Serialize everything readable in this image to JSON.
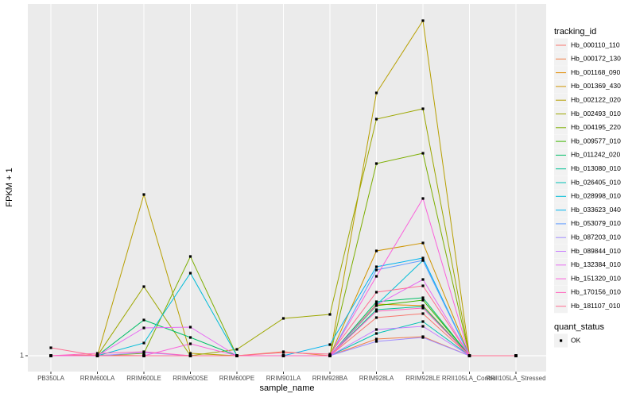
{
  "chart_data": {
    "type": "line",
    "xlabel": "sample_name",
    "ylabel": "FPKM + 1",
    "legend_title": "tracking_id",
    "shape_legend": {
      "title": "quant_status",
      "labels": [
        "OK"
      ]
    },
    "categories": [
      "PB350LA",
      "RRIM600LA",
      "RRIM600LE",
      "RRIM600SE",
      "RRIM600PE",
      "RRIM901LA",
      "RRIM928BA",
      "RRIM928LA",
      "RRIM928LE",
      "RRII105LA_Control",
      "RRII105LA_Stressed"
    ],
    "ylim": [
      -1,
      45.3
    ],
    "yticks": [
      1
    ],
    "grid": true,
    "legend": "right",
    "series": [
      {
        "name": "Hb_000110_110",
        "color": "#F8766D",
        "values": [
          1,
          1,
          1,
          1,
          1,
          1,
          1,
          5.8,
          6.3,
          1,
          1
        ]
      },
      {
        "name": "Hb_000172_130",
        "color": "#EF7F49",
        "values": [
          1,
          1.1,
          1,
          1,
          1,
          1.5,
          1,
          3.1,
          3.4,
          1,
          1
        ]
      },
      {
        "name": "Hb_001168_090",
        "color": "#E18A00",
        "values": [
          1,
          1,
          1,
          1,
          1,
          1,
          1,
          7.5,
          7.3,
          1,
          1
        ]
      },
      {
        "name": "Hb_001369_430",
        "color": "#CF9400",
        "values": [
          1,
          1,
          1,
          1,
          1,
          1,
          1,
          14.2,
          15.2,
          1,
          1
        ]
      },
      {
        "name": "Hb_002122_020",
        "color": "#B79F00",
        "values": [
          1,
          1,
          21.3,
          1.3,
          1,
          1,
          1,
          34.1,
          43.2,
          1,
          1
        ]
      },
      {
        "name": "Hb_002493_010",
        "color": "#9DA700",
        "values": [
          1,
          1,
          9.7,
          1,
          1.8,
          5.7,
          6.2,
          30.8,
          32.1,
          1,
          1
        ]
      },
      {
        "name": "Hb_004195_220",
        "color": "#7CAE00",
        "values": [
          1,
          1,
          1.3,
          13.5,
          1,
          1,
          1,
          25.2,
          26.5,
          1,
          1
        ]
      },
      {
        "name": "Hb_009577_010",
        "color": "#3DB600",
        "values": [
          1,
          1,
          1,
          1,
          1,
          1,
          1,
          7.3,
          8,
          1,
          1
        ]
      },
      {
        "name": "Hb_011242_020",
        "color": "#00BE67",
        "values": [
          1,
          1,
          5.5,
          3.3,
          1,
          1,
          1,
          7.8,
          8.3,
          1,
          1
        ]
      },
      {
        "name": "Hb_013080_010",
        "color": "#00C094",
        "values": [
          1,
          1,
          1,
          1,
          1,
          1,
          1,
          6.8,
          7.2,
          1,
          1
        ]
      },
      {
        "name": "Hb_026405_010",
        "color": "#00C0B5",
        "values": [
          1,
          1,
          1,
          1,
          1,
          1,
          1,
          3.8,
          5.3,
          1,
          1
        ]
      },
      {
        "name": "Hb_028998_010",
        "color": "#00BCD8",
        "values": [
          1,
          1,
          2.6,
          11.4,
          1,
          1,
          1,
          7.4,
          13,
          1,
          1
        ]
      },
      {
        "name": "Hb_033623_040",
        "color": "#00B4F0",
        "values": [
          1,
          1,
          1,
          1,
          1,
          1,
          2.4,
          12.2,
          13.3,
          1,
          1
        ]
      },
      {
        "name": "Hb_053079_010",
        "color": "#619CFF",
        "values": [
          1,
          1,
          1,
          1,
          1,
          1,
          1,
          11.8,
          13,
          1,
          1
        ]
      },
      {
        "name": "Hb_087203_010",
        "color": "#9F8CFF",
        "values": [
          1,
          1,
          1.4,
          1,
          1,
          1,
          1,
          2.8,
          3.3,
          1,
          1
        ]
      },
      {
        "name": "Hb_089844_010",
        "color": "#C77CFF",
        "values": [
          1,
          1,
          1,
          1,
          1,
          1,
          1,
          4.3,
          4.7,
          1,
          1
        ]
      },
      {
        "name": "Hb_132384_010",
        "color": "#E76BF3",
        "values": [
          1,
          1,
          4.5,
          4.6,
          1,
          1,
          1,
          7.4,
          10.6,
          1,
          1
        ]
      },
      {
        "name": "Hb_151320_010",
        "color": "#FA62DB",
        "values": [
          1,
          1,
          1,
          2.5,
          1,
          1,
          1,
          11,
          20.8,
          1,
          1
        ]
      },
      {
        "name": "Hb_170156_010",
        "color": "#FF62BC",
        "values": [
          1,
          1.3,
          1.5,
          1,
          1,
          1,
          1,
          6.6,
          7,
          1,
          1
        ]
      },
      {
        "name": "Hb_181107_010",
        "color": "#FF6C91",
        "values": [
          2,
          1,
          1,
          1,
          1,
          1.4,
          1.2,
          9,
          9.8,
          1,
          1
        ]
      }
    ]
  }
}
